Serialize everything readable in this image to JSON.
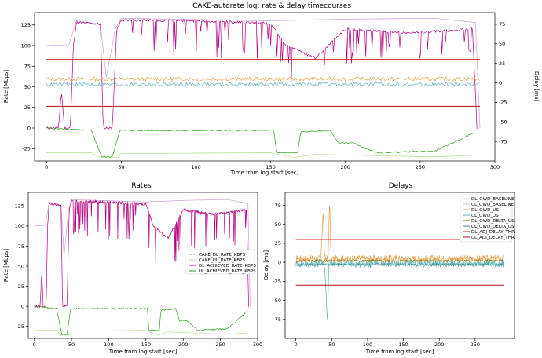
{
  "figure": {
    "background": "#ffffff"
  },
  "colors": {
    "cake_dl": "#c9a3d6",
    "cake_ul": "#b5dc8f",
    "dl_achieved": "#b5007f",
    "ul_achieved": "#2ea01c",
    "dl_owd_baseline": "#d9c6ea",
    "ul_owd_baseline": "#b6e0d0",
    "dl_owd_us": "#e8a04a",
    "ul_owd_us": "#5fb1b8",
    "dl_owd_delta": "#8a7a10",
    "ul_owd_delta": "#3d8f86",
    "dl_adj_thr": "#d62728",
    "ul_adj_thr": "#b01020"
  },
  "chart_data": [
    {
      "id": "top",
      "type": "line",
      "title": "CAKE-autorate log: rate & delay timecourses",
      "xlabel": "Time from log start [sec]",
      "ylabel": "Rate [Mbps]",
      "y2label": "Delay [ms]",
      "xlim": [
        -8,
        300
      ],
      "ylim": [
        -40,
        140
      ],
      "y2lim": [
        -100,
        90
      ],
      "xticks": [
        0,
        50,
        100,
        150,
        200,
        250,
        300
      ],
      "yticks": [
        -25,
        0,
        25,
        50,
        75,
        100,
        125
      ],
      "y2ticks": [
        -75,
        -50,
        -25,
        0,
        25,
        50,
        75
      ],
      "series": [
        {
          "name": "CAKE_DL_RATE_KBPS",
          "axis": "left",
          "color_key": "cake_dl",
          "points": [
            [
              0,
              100
            ],
            [
              15,
              101
            ],
            [
              20,
              130
            ],
            [
              36,
              126
            ],
            [
              40,
              62
            ],
            [
              46,
              120
            ],
            [
              50,
              133
            ],
            [
              150,
              130
            ],
            [
              200,
              132
            ],
            [
              260,
              133
            ],
            [
              287,
              128
            ],
            [
              290,
              0
            ]
          ]
        },
        {
          "name": "CAKE_UL_RATE_KBPS",
          "axis": "left",
          "color_key": "cake_ul",
          "points": [
            [
              0,
              -30
            ],
            [
              30,
              -30
            ],
            [
              36,
              -36
            ],
            [
              48,
              -36
            ],
            [
              50,
              -31
            ],
            [
              150,
              -30
            ],
            [
              165,
              -36
            ],
            [
              180,
              -32
            ],
            [
              230,
              -34
            ],
            [
              260,
              -35
            ],
            [
              287,
              -33
            ]
          ]
        },
        {
          "name": "DL_ACHIEVED_RATE_KBPS",
          "axis": "left",
          "color_key": "dl_achieved",
          "points": [
            [
              0,
              0
            ],
            [
              8,
              0
            ],
            [
              10,
              45
            ],
            [
              12,
              0
            ],
            [
              16,
              0
            ],
            [
              18,
              100
            ],
            [
              20,
              128
            ],
            [
              36,
              126
            ],
            [
              38,
              0
            ],
            [
              44,
              0
            ],
            [
              47,
              120
            ],
            [
              50,
              131
            ],
            [
              100,
              130
            ],
            [
              150,
              127
            ],
            [
              160,
              100
            ],
            [
              180,
              85
            ],
            [
              200,
              120
            ],
            [
              240,
              115
            ],
            [
              285,
              120
            ],
            [
              288,
              0
            ]
          ]
        },
        {
          "name": "UL_ACHIEVED_RATE_KBPS",
          "axis": "left",
          "color_key": "ul_achieved",
          "points": [
            [
              0,
              0
            ],
            [
              10,
              -1
            ],
            [
              30,
              -3
            ],
            [
              37,
              -35
            ],
            [
              44,
              -35
            ],
            [
              49,
              -3
            ],
            [
              152,
              -3
            ],
            [
              154,
              -30
            ],
            [
              168,
              -30
            ],
            [
              170,
              -5
            ],
            [
              190,
              -3
            ],
            [
              195,
              -18
            ],
            [
              205,
              -18
            ],
            [
              220,
              -30
            ],
            [
              260,
              -28
            ],
            [
              287,
              -5
            ]
          ]
        },
        {
          "name": "DL_OWD_US",
          "axis": "right",
          "color_key": "dl_owd_us",
          "points": [
            [
              0,
              5
            ],
            [
              290,
              5
            ]
          ]
        },
        {
          "name": "UL_OWD_US",
          "axis": "right",
          "color_key": "ul_owd_us",
          "points": [
            [
              0,
              -2
            ],
            [
              290,
              -2
            ]
          ]
        },
        {
          "name": "DL_ADJ_DELAY_THR",
          "axis": "right",
          "color_key": "dl_adj_thr",
          "points": [
            [
              0,
              30
            ],
            [
              290,
              30
            ]
          ]
        },
        {
          "name": "UL_ADJ_DELAY_THR",
          "axis": "right",
          "color_key": "ul_adj_thr",
          "points": [
            [
              0,
              -30
            ],
            [
              290,
              -30
            ]
          ]
        }
      ]
    },
    {
      "id": "rates",
      "type": "line",
      "title": "Rates",
      "xlabel": "Time from log start [sec]",
      "ylabel": "Rate [Mbps]",
      "xlim": [
        -8,
        300
      ],
      "ylim": [
        -40,
        142
      ],
      "xticks": [
        0,
        50,
        100,
        150,
        200,
        250,
        300
      ],
      "yticks": [
        -25,
        0,
        25,
        50,
        75,
        100,
        125
      ],
      "legend": "center-right",
      "series": [
        {
          "name": "CAKE_DL_RATE_KBPS",
          "color_key": "cake_dl",
          "points": [
            [
              0,
              100
            ],
            [
              15,
              101
            ],
            [
              20,
              130
            ],
            [
              36,
              126
            ],
            [
              40,
              62
            ],
            [
              46,
              120
            ],
            [
              50,
              133
            ],
            [
              150,
              130
            ],
            [
              200,
              132
            ],
            [
              260,
              133
            ],
            [
              287,
              128
            ],
            [
              290,
              0
            ]
          ]
        },
        {
          "name": "CAKE_UL_RATE_KBPS",
          "color_key": "cake_ul",
          "points": [
            [
              0,
              -30
            ],
            [
              30,
              -30
            ],
            [
              36,
              -36
            ],
            [
              48,
              -36
            ],
            [
              50,
              -31
            ],
            [
              150,
              -30
            ],
            [
              165,
              -36
            ],
            [
              180,
              -32
            ],
            [
              230,
              -34
            ],
            [
              260,
              -35
            ],
            [
              287,
              -33
            ]
          ]
        },
        {
          "name": "DL_ACHIEVED_RATE_KBPS",
          "color_key": "dl_achieved",
          "points": [
            [
              0,
              0
            ],
            [
              8,
              0
            ],
            [
              10,
              45
            ],
            [
              12,
              0
            ],
            [
              16,
              0
            ],
            [
              18,
              100
            ],
            [
              20,
              128
            ],
            [
              36,
              126
            ],
            [
              38,
              0
            ],
            [
              44,
              0
            ],
            [
              47,
              120
            ],
            [
              50,
              131
            ],
            [
              100,
              130
            ],
            [
              150,
              127
            ],
            [
              160,
              100
            ],
            [
              180,
              85
            ],
            [
              200,
              120
            ],
            [
              240,
              115
            ],
            [
              285,
              120
            ],
            [
              288,
              0
            ]
          ]
        },
        {
          "name": "UL_ACHIEVED_RATE_KBPS",
          "color_key": "ul_achieved",
          "points": [
            [
              0,
              0
            ],
            [
              10,
              -1
            ],
            [
              30,
              -3
            ],
            [
              37,
              -35
            ],
            [
              44,
              -35
            ],
            [
              49,
              -3
            ],
            [
              152,
              -3
            ],
            [
              154,
              -30
            ],
            [
              168,
              -30
            ],
            [
              170,
              -5
            ],
            [
              190,
              -3
            ],
            [
              195,
              -18
            ],
            [
              205,
              -18
            ],
            [
              220,
              -30
            ],
            [
              260,
              -28
            ],
            [
              287,
              -5
            ]
          ]
        }
      ]
    },
    {
      "id": "delays",
      "type": "line",
      "title": "Delays",
      "xlabel": "Time from log start [sec]",
      "ylabel": "Delay [ms]",
      "xlim": [
        -15,
        305
      ],
      "ylim": [
        -100,
        92
      ],
      "xticks": [
        0,
        50,
        100,
        150,
        200,
        250
      ],
      "yticks": [
        -75,
        -50,
        -25,
        0,
        25,
        50,
        75
      ],
      "legend": "top-right",
      "series": [
        {
          "name": "DL_OWD_BASELINE",
          "color_key": "dl_owd_baseline",
          "points": [
            [
              0,
              2
            ],
            [
              290,
              2
            ]
          ]
        },
        {
          "name": "UL_OWD_BASELINE",
          "color_key": "ul_owd_baseline",
          "points": [
            [
              0,
              -1
            ],
            [
              290,
              -1
            ]
          ]
        },
        {
          "name": "DL_OWD_US",
          "color_key": "dl_owd_us",
          "points": [
            [
              0,
              5
            ],
            [
              35,
              5
            ],
            [
              38,
              70
            ],
            [
              40,
              5
            ],
            [
              45,
              5
            ],
            [
              47,
              85
            ],
            [
              49,
              5
            ],
            [
              290,
              5
            ]
          ]
        },
        {
          "name": "UL_OWD_US",
          "color_key": "ul_owd_us",
          "points": [
            [
              0,
              -2
            ],
            [
              40,
              -2
            ],
            [
              44,
              -80
            ],
            [
              46,
              -2
            ],
            [
              290,
              -2
            ]
          ]
        },
        {
          "name": "DL_OWD_DELTA_US",
          "color_key": "dl_owd_delta",
          "points": [
            [
              0,
              2
            ],
            [
              290,
              2
            ]
          ]
        },
        {
          "name": "UL_OWD_DELTA_US",
          "color_key": "ul_owd_delta",
          "points": [
            [
              0,
              -3
            ],
            [
              290,
              -3
            ]
          ]
        },
        {
          "name": "DL_ADJ_DELAY_THR",
          "color_key": "dl_adj_thr",
          "points": [
            [
              0,
              30
            ],
            [
              290,
              30
            ]
          ]
        },
        {
          "name": "UL_ADJ_DELAY_THR",
          "color_key": "ul_adj_thr",
          "points": [
            [
              0,
              -30
            ],
            [
              290,
              -30
            ]
          ]
        }
      ]
    }
  ]
}
